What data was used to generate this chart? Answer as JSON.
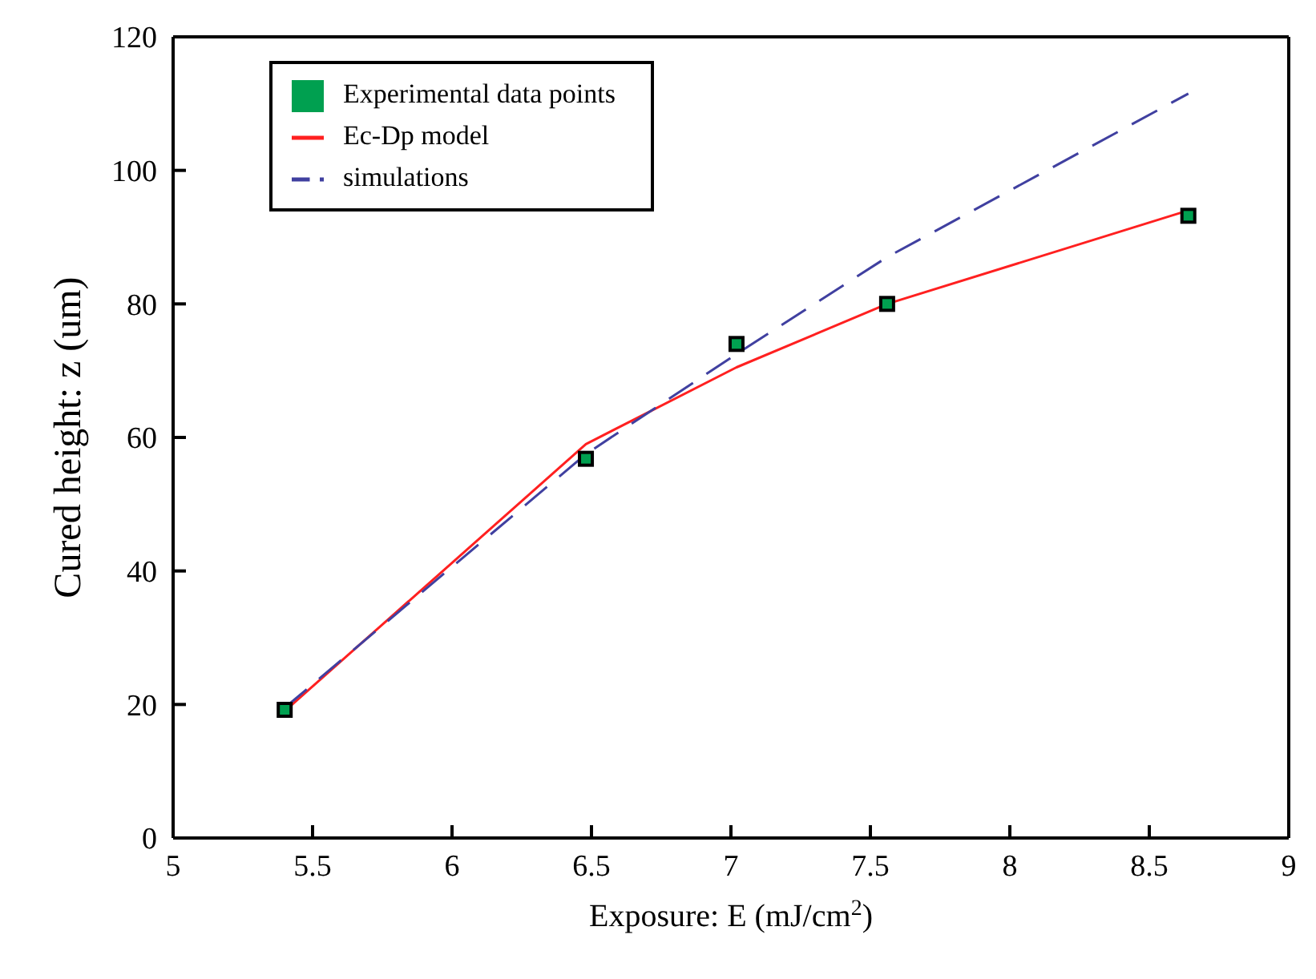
{
  "chart_data": {
    "type": "line",
    "xlabel": "Exposure: E (mJ/cm$^{2}$)",
    "ylabel": "Cured height: z (um)",
    "x": [
      5.4,
      6.48,
      7.02,
      7.56,
      8.64
    ],
    "series": [
      {
        "name": "Experimental data points",
        "type": "scatter",
        "color": "#00a050",
        "marker": "square",
        "values": [
          19.2,
          56.8,
          74,
          80,
          93.2
        ]
      },
      {
        "name": "Ec-Dp model",
        "color": "#ff2020",
        "line_style": "solid",
        "values": [
          19,
          59,
          70.5,
          80,
          94
        ]
      },
      {
        "name": "simulations",
        "color": "#4040a0",
        "line_style": "dashed",
        "values": [
          19.5,
          57.5,
          72.5,
          87,
          111.5
        ]
      }
    ],
    "xlim": [
      5,
      9
    ],
    "xticks": [
      5,
      5.5,
      6,
      6.5,
      7,
      7.5,
      8,
      8.5,
      9
    ],
    "ylim": [
      0,
      120
    ],
    "yticks": [
      0,
      20,
      40,
      60,
      80,
      100,
      120
    ],
    "grid": false,
    "legend": "top left"
  }
}
